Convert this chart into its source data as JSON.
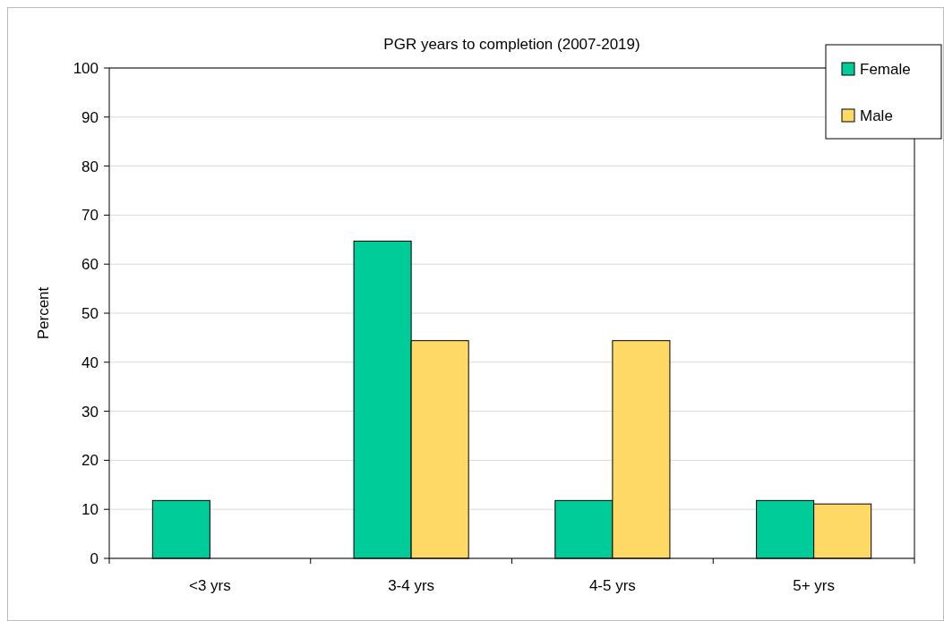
{
  "chart_data": {
    "type": "bar",
    "title": "PGR years to completion (2007-2019)",
    "ylabel": "Percent",
    "categories": [
      "<3 yrs",
      "3-4 yrs",
      "4-5 yrs",
      "5+ yrs"
    ],
    "series": [
      {
        "name": "Female",
        "color": "#00cc99",
        "values": [
          11.8,
          64.7,
          11.8,
          11.8
        ]
      },
      {
        "name": "Male",
        "color": "#ffd966",
        "values": [
          0,
          44.4,
          44.4,
          11.1
        ]
      }
    ],
    "ylim": [
      0,
      100
    ],
    "yticks": [
      0,
      10,
      20,
      30,
      40,
      50,
      60,
      70,
      80,
      90,
      100
    ],
    "grid": "y",
    "legend": "top right"
  }
}
